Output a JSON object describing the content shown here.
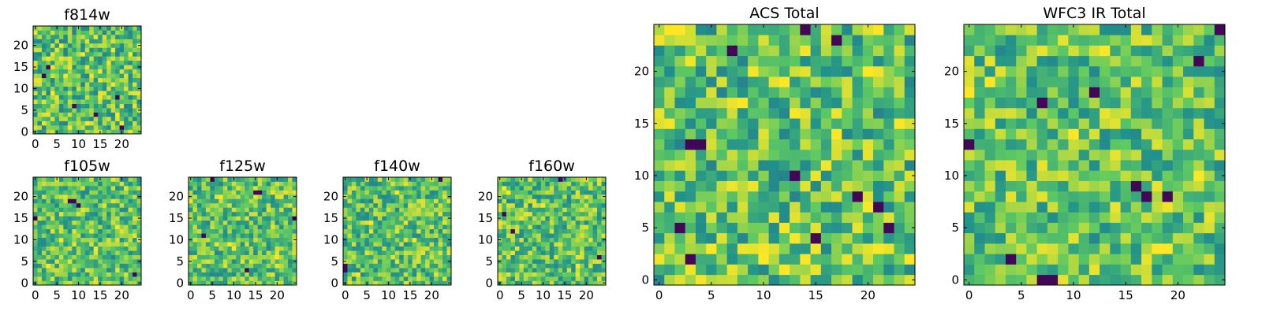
{
  "figure": {
    "colormap": [
      "#440154",
      "#3b528b",
      "#21918c",
      "#5ec962",
      "#fde725"
    ]
  },
  "chart_data": [
    {
      "id": "f814w",
      "type": "heatmap",
      "title": "f814w",
      "grid_size": 25,
      "xlim": [
        -0.5,
        24.5
      ],
      "ylim": [
        -0.5,
        24.5
      ],
      "xticks": [
        0,
        5,
        10,
        15,
        20
      ],
      "yticks": [
        0,
        5,
        10,
        15,
        20
      ],
      "xtick_labels": [
        "0",
        "5",
        "10",
        "15",
        "20"
      ],
      "ytick_labels": [
        "0",
        "5",
        "10",
        "15",
        "20"
      ],
      "seed": 814,
      "texture": "fine",
      "dark_pixels": [
        [
          2,
          13
        ],
        [
          3,
          15
        ],
        [
          19,
          8
        ],
        [
          9,
          6
        ],
        [
          14,
          4
        ],
        [
          20,
          1
        ]
      ],
      "bright_pixels": [
        [
          6,
          20
        ],
        [
          12,
          2
        ],
        [
          22,
          18
        ],
        [
          4,
          9
        ]
      ]
    },
    {
      "id": "f105w",
      "type": "heatmap",
      "title": "f105w",
      "grid_size": 25,
      "xlim": [
        -0.5,
        24.5
      ],
      "ylim": [
        -0.5,
        24.5
      ],
      "xticks": [
        0,
        5,
        10,
        15,
        20
      ],
      "yticks": [
        0,
        5,
        10,
        15,
        20
      ],
      "xtick_labels": [
        "0",
        "5",
        "10",
        "15",
        "20"
      ],
      "ytick_labels": [
        "0",
        "5",
        "10",
        "15",
        "20"
      ],
      "seed": 105,
      "texture": "smooth",
      "dark_pixels": [
        [
          8,
          19
        ],
        [
          9,
          19
        ],
        [
          10,
          18
        ],
        [
          0,
          15
        ],
        [
          23,
          2
        ]
      ],
      "bright_pixels": [
        [
          6,
          10
        ],
        [
          14,
          8
        ],
        [
          19,
          13
        ],
        [
          3,
          4
        ]
      ]
    },
    {
      "id": "f125w",
      "type": "heatmap",
      "title": "f125w",
      "grid_size": 25,
      "xlim": [
        -0.5,
        24.5
      ],
      "ylim": [
        -0.5,
        24.5
      ],
      "xticks": [
        0,
        5,
        10,
        15,
        20
      ],
      "yticks": [
        0,
        5,
        10,
        15,
        20
      ],
      "xtick_labels": [
        "0",
        "5",
        "10",
        "15",
        "20"
      ],
      "ytick_labels": [
        "0",
        "5",
        "10",
        "15",
        "20"
      ],
      "seed": 125,
      "texture": "smooth",
      "dark_pixels": [
        [
          5,
          24
        ],
        [
          15,
          21
        ],
        [
          16,
          21
        ],
        [
          3,
          11
        ],
        [
          24,
          15
        ],
        [
          13,
          3
        ]
      ],
      "bright_pixels": [
        [
          9,
          9
        ],
        [
          10,
          8
        ],
        [
          7,
          20
        ],
        [
          20,
          6
        ]
      ]
    },
    {
      "id": "f140w",
      "type": "heatmap",
      "title": "f140w",
      "grid_size": 25,
      "xlim": [
        -0.5,
        24.5
      ],
      "ylim": [
        -0.5,
        24.5
      ],
      "xticks": [
        0,
        5,
        10,
        15,
        20
      ],
      "yticks": [
        0,
        5,
        10,
        15,
        20
      ],
      "xtick_labels": [
        "0",
        "5",
        "10",
        "15",
        "20"
      ],
      "ytick_labels": [
        "0",
        "5",
        "10",
        "15",
        "20"
      ],
      "seed": 140,
      "texture": "smooth",
      "dark_pixels": [
        [
          0,
          4
        ],
        [
          0,
          3
        ],
        [
          22,
          24
        ]
      ],
      "bright_pixels": [
        [
          12,
          21
        ],
        [
          16,
          10
        ],
        [
          6,
          14
        ],
        [
          3,
          2
        ]
      ]
    },
    {
      "id": "f160w",
      "type": "heatmap",
      "title": "f160w",
      "grid_size": 25,
      "xlim": [
        -0.5,
        24.5
      ],
      "ylim": [
        -0.5,
        24.5
      ],
      "xticks": [
        0,
        5,
        10,
        15,
        20
      ],
      "yticks": [
        0,
        5,
        10,
        15,
        20
      ],
      "xtick_labels": [
        "0",
        "5",
        "10",
        "15",
        "20"
      ],
      "ytick_labels": [
        "0",
        "5",
        "10",
        "15",
        "20"
      ],
      "seed": 160,
      "texture": "smooth",
      "dark_pixels": [
        [
          3,
          12
        ],
        [
          23,
          6
        ],
        [
          14,
          24
        ],
        [
          1,
          16
        ]
      ],
      "bright_pixels": [
        [
          1,
          22
        ],
        [
          2,
          21
        ],
        [
          10,
          18
        ],
        [
          18,
          4
        ]
      ]
    },
    {
      "id": "acs-total",
      "type": "heatmap",
      "title": "ACS Total",
      "grid_size": 25,
      "xlim": [
        -0.5,
        24.5
      ],
      "ylim": [
        -0.5,
        24.5
      ],
      "xticks": [
        0,
        5,
        10,
        15,
        20
      ],
      "yticks": [
        0,
        5,
        10,
        15,
        20
      ],
      "xtick_labels": [
        "0",
        "5",
        "10",
        "15",
        "20"
      ],
      "ytick_labels": [
        "0",
        "5",
        "10",
        "15",
        "20"
      ],
      "seed": 2001,
      "texture": "fine",
      "dark_pixels": [
        [
          3,
          13
        ],
        [
          4,
          13
        ],
        [
          13,
          10
        ],
        [
          19,
          8
        ],
        [
          2,
          5
        ],
        [
          15,
          4
        ],
        [
          22,
          5
        ],
        [
          7,
          22
        ],
        [
          14,
          24
        ],
        [
          21,
          7
        ],
        [
          3,
          2
        ],
        [
          17,
          23
        ]
      ],
      "bright_pixels": [
        [
          1,
          24
        ],
        [
          2,
          24
        ],
        [
          8,
          17
        ],
        [
          12,
          19
        ],
        [
          20,
          20
        ],
        [
          5,
          3
        ],
        [
          10,
          2
        ],
        [
          17,
          14
        ]
      ]
    },
    {
      "id": "wfc3-ir-total",
      "type": "heatmap",
      "title": "WFC3 IR Total",
      "grid_size": 25,
      "xlim": [
        -0.5,
        24.5
      ],
      "ylim": [
        -0.5,
        24.5
      ],
      "xticks": [
        0,
        5,
        10,
        15,
        20
      ],
      "yticks": [
        0,
        5,
        10,
        15,
        20
      ],
      "xtick_labels": [
        "0",
        "5",
        "10",
        "15",
        "20"
      ],
      "ytick_labels": [
        "0",
        "5",
        "10",
        "15",
        "20"
      ],
      "seed": 3001,
      "texture": "smooth",
      "dark_pixels": [
        [
          7,
          17
        ],
        [
          12,
          18
        ],
        [
          0,
          13
        ],
        [
          7,
          0
        ],
        [
          8,
          0
        ],
        [
          16,
          9
        ],
        [
          17,
          8
        ],
        [
          19,
          8
        ],
        [
          4,
          2
        ],
        [
          24,
          24
        ],
        [
          22,
          21
        ]
      ],
      "bright_pixels": [
        [
          0,
          18
        ],
        [
          2,
          19
        ],
        [
          10,
          14
        ],
        [
          18,
          3
        ],
        [
          19,
          3
        ],
        [
          22,
          10
        ],
        [
          13,
          22
        ]
      ]
    }
  ]
}
